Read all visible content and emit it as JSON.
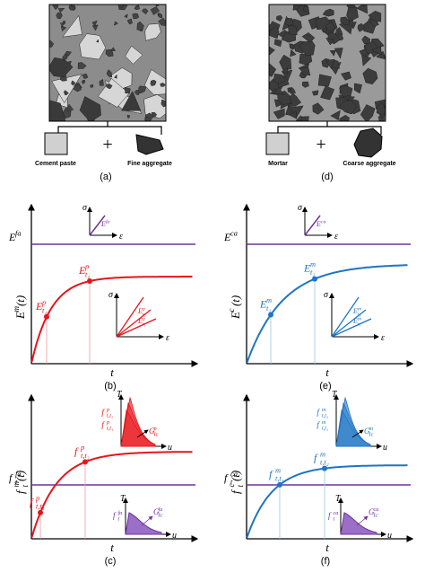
{
  "panel_a": {
    "items": [
      "Cement paste",
      "Fine aggregate"
    ],
    "caption": "(a)"
  },
  "panel_d": {
    "items": [
      "Mortar",
      "Coarse aggregate"
    ],
    "caption": "(d)"
  },
  "panel_b": {
    "caption": "(b)",
    "x_label": "t",
    "y_label": {
      "base": "E",
      "sup": "m",
      "arg": "(t)"
    },
    "line_label": {
      "base": "E",
      "sup": "fa"
    },
    "point_labels": [
      {
        "base": "E",
        "sup": "p",
        "sub": "t₁"
      },
      {
        "base": "E",
        "sup": "p",
        "sub": "t₂"
      }
    ],
    "inset_top": {
      "y": "σ",
      "x": "ε",
      "slope": {
        "base": "E",
        "sup": "fa"
      }
    },
    "inset_bottom": {
      "y": "σ",
      "x": "ε",
      "slopes": [
        {
          "base": "E",
          "sup": "p",
          "sub": "t₂"
        },
        {
          "base": "E",
          "sup": "p",
          "sub": "t₁"
        }
      ]
    }
  },
  "panel_e": {
    "caption": "(e)",
    "x_label": "t",
    "y_label": {
      "base": "E",
      "sup": "c",
      "arg": "(t)"
    },
    "line_label": {
      "base": "E",
      "sup": "ca"
    },
    "point_labels": [
      {
        "base": "E",
        "sup": "m",
        "sub": "t₁"
      },
      {
        "base": "E",
        "sup": "m",
        "sub": "t₂"
      }
    ],
    "inset_top": {
      "y": "σ",
      "x": "ε",
      "slope": {
        "base": "E",
        "sup": "ca"
      }
    },
    "inset_bottom": {
      "y": "σ",
      "x": "ε",
      "slopes": [
        {
          "base": "E",
          "sup": "m",
          "sub": "t₂"
        },
        {
          "base": "E",
          "sup": "m",
          "sub": "t₁"
        }
      ]
    }
  },
  "panel_c": {
    "caption": "(c)",
    "x_label": "t",
    "y_label": {
      "base": "f",
      "sub": "t",
      "sup": "m",
      "arg": "(t)"
    },
    "line_label": {
      "base": "f",
      "sub": "t",
      "sup": "fa"
    },
    "point_labels": [
      {
        "base": "f",
        "sup": "p",
        "sub": "t,t₁"
      },
      {
        "base": "f",
        "sup": "p",
        "sub": "t,t₂"
      }
    ],
    "inset_top": {
      "y": "T",
      "x": "u",
      "strengths": [
        {
          "base": "f",
          "sup": "p",
          "sub": "t,t₂"
        },
        {
          "base": "f",
          "sup": "p",
          "sub": "t,t₁"
        }
      ],
      "energy": {
        "base": "G",
        "sup": "p",
        "sub": "Ic"
      }
    },
    "inset_bottom": {
      "y": "T",
      "x": "u",
      "strength": {
        "base": "f",
        "sub": "t",
        "sup": "fa"
      },
      "energy": {
        "base": "G",
        "sup": "fa",
        "sub": "Ic"
      }
    }
  },
  "panel_f": {
    "caption": "(f)",
    "x_label": "t",
    "y_label": {
      "base": "f",
      "sub": "t",
      "sup": "c",
      "arg": "(t)"
    },
    "line_label": {
      "base": "f",
      "sub": "t",
      "sup": "ca"
    },
    "point_labels": [
      {
        "base": "f",
        "sup": "m",
        "sub": "t,t₁"
      },
      {
        "base": "f",
        "sup": "m",
        "sub": "t,t₂"
      }
    ],
    "inset_top": {
      "y": "T",
      "x": "u",
      "strengths": [
        {
          "base": "f",
          "sup": "m",
          "sub": "t,t₂"
        },
        {
          "base": "f",
          "sup": "m",
          "sub": "t,t₁"
        }
      ],
      "energy": {
        "base": "G",
        "sup": "m",
        "sub": "Ic"
      }
    },
    "inset_bottom": {
      "y": "T",
      "x": "u",
      "strength": {
        "base": "f",
        "sub": "t",
        "sup": "ca"
      },
      "energy": {
        "base": "G",
        "sup": "ca",
        "sub": "Ic"
      }
    }
  }
}
